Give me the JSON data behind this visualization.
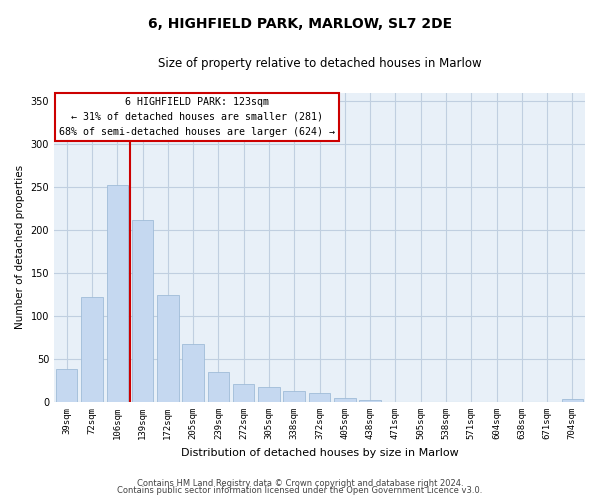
{
  "title": "6, HIGHFIELD PARK, MARLOW, SL7 2DE",
  "subtitle": "Size of property relative to detached houses in Marlow",
  "xlabel": "Distribution of detached houses by size in Marlow",
  "ylabel": "Number of detached properties",
  "bar_labels": [
    "39sqm",
    "72sqm",
    "106sqm",
    "139sqm",
    "172sqm",
    "205sqm",
    "239sqm",
    "272sqm",
    "305sqm",
    "338sqm",
    "372sqm",
    "405sqm",
    "438sqm",
    "471sqm",
    "505sqm",
    "538sqm",
    "571sqm",
    "604sqm",
    "638sqm",
    "671sqm",
    "704sqm"
  ],
  "bar_values": [
    38,
    122,
    252,
    212,
    124,
    68,
    35,
    21,
    17,
    13,
    11,
    5,
    2,
    0,
    0,
    0,
    0,
    0,
    0,
    0,
    3
  ],
  "bar_color": "#c5d8f0",
  "bar_edgecolor": "#a0bcd8",
  "vline_color": "#cc0000",
  "vline_pos": 2.5,
  "ylim": [
    0,
    360
  ],
  "yticks": [
    0,
    50,
    100,
    150,
    200,
    250,
    300,
    350
  ],
  "annotation_title": "6 HIGHFIELD PARK: 123sqm",
  "annotation_line1": "← 31% of detached houses are smaller (281)",
  "annotation_line2": "68% of semi-detached houses are larger (624) →",
  "annotation_box_facecolor": "#ffffff",
  "annotation_box_edgecolor": "#cc0000",
  "footnote1": "Contains HM Land Registry data © Crown copyright and database right 2024.",
  "footnote2": "Contains public sector information licensed under the Open Government Licence v3.0.",
  "background_color": "#ffffff",
  "axes_facecolor": "#e8f0f8",
  "grid_color": "#c0cfe0",
  "title_fontsize": 10,
  "subtitle_fontsize": 8.5,
  "xlabel_fontsize": 8,
  "ylabel_fontsize": 7.5,
  "tick_fontsize": 6.5,
  "footnote_fontsize": 6
}
